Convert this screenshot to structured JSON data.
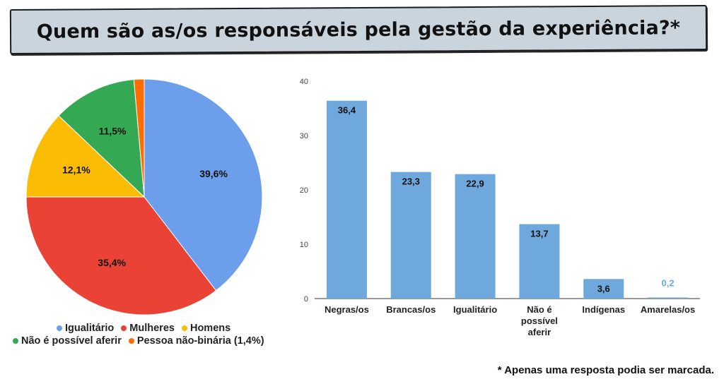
{
  "title": "Quem são as/os responsáveis pela gestão da experiência?*",
  "footnote": "* Apenas uma resposta podia ser marcada.",
  "colors": {
    "blue": "#6d9eeb",
    "red": "#ea4335",
    "yellow": "#fbbc04",
    "green": "#34a853",
    "orange": "#ff6d01",
    "bar": "#6fa8dc",
    "bar_label_light": "#6fa8dc"
  },
  "legend": {
    "row1": [
      "Igualitário",
      "Mulheres",
      "Homens"
    ],
    "row2": [
      "Não é possível aferir",
      "Pessoa não-binária (1,4%)"
    ]
  },
  "chart_data": [
    {
      "type": "pie",
      "title": "",
      "labels": [
        "Igualitário",
        "Mulheres",
        "Homens",
        "Não é possível aferir",
        "Pessoa não-binária"
      ],
      "values": [
        39.6,
        35.4,
        12.1,
        11.5,
        1.4
      ],
      "value_labels": [
        "39,6%",
        "35,4%",
        "12,1%",
        "11,5%",
        ""
      ],
      "colors": [
        "#6d9eeb",
        "#ea4335",
        "#fbbc04",
        "#34a853",
        "#ff6d01"
      ],
      "legend_position": "bottom"
    },
    {
      "type": "bar",
      "title": "",
      "categories": [
        "Negras/os",
        "Brancas/os",
        "Igualitário",
        "Não é possível aferir",
        "Indígenas",
        "Amarelas/os"
      ],
      "category_lines": [
        [
          "Negras/os"
        ],
        [
          "Brancas/os"
        ],
        [
          "Igualitário"
        ],
        [
          "Não é",
          "possível",
          "aferir"
        ],
        [
          "Indígenas"
        ],
        [
          "Amarelas/os"
        ]
      ],
      "values": [
        36.4,
        23.3,
        22.9,
        13.7,
        3.6,
        0.2
      ],
      "value_labels": [
        "36,4",
        "23,3",
        "22,9",
        "13,7",
        "3,6",
        "0,2"
      ],
      "ylim": [
        0,
        40
      ],
      "yticks": [
        "0",
        "10",
        "20",
        "30",
        "40"
      ],
      "xlabel": "",
      "ylabel": "",
      "grid": false
    }
  ]
}
